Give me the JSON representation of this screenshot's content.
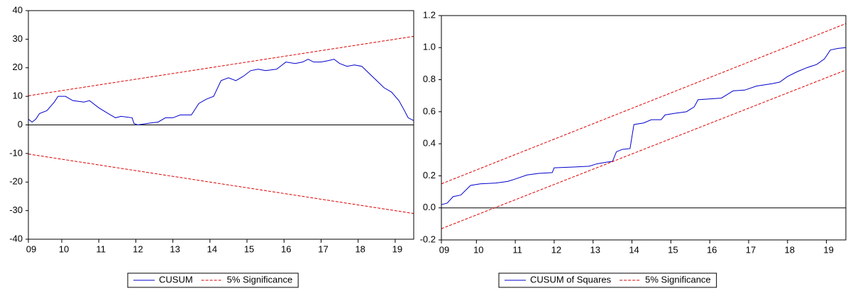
{
  "chart_data": [
    {
      "type": "line",
      "legend": "bottom",
      "xlim": [
        2009.1,
        2019.5
      ],
      "xticks": [
        {
          "value": 2009.1,
          "label": "09"
        },
        {
          "value": 2010,
          "label": "10"
        },
        {
          "value": 2011,
          "label": "11"
        },
        {
          "value": 2012,
          "label": "12"
        },
        {
          "value": 2013,
          "label": "13"
        },
        {
          "value": 2014,
          "label": "14"
        },
        {
          "value": 2015,
          "label": "15"
        },
        {
          "value": 2016,
          "label": "16"
        },
        {
          "value": 2017,
          "label": "17"
        },
        {
          "value": 2018,
          "label": "18"
        },
        {
          "value": 2019,
          "label": "19"
        }
      ],
      "ylim": [
        -40,
        40
      ],
      "yticks": [
        -40,
        -30,
        -20,
        -10,
        0,
        10,
        20,
        30,
        40
      ],
      "series": [
        {
          "name": "CUSUM",
          "color": "#0000cc",
          "style": "solid",
          "x": [
            2009.1,
            2009.2,
            2009.3,
            2009.4,
            2009.6,
            2009.8,
            2009.9,
            2010.1,
            2010.3,
            2010.6,
            2010.75,
            2011.0,
            2011.25,
            2011.45,
            2011.6,
            2011.9,
            2011.95,
            2012.05,
            2012.3,
            2012.6,
            2012.8,
            2013.0,
            2013.2,
            2013.5,
            2013.7,
            2013.9,
            2014.1,
            2014.3,
            2014.5,
            2014.7,
            2014.9,
            2015.1,
            2015.3,
            2015.5,
            2015.8,
            2015.9,
            2016.05,
            2016.3,
            2016.5,
            2016.65,
            2016.8,
            2017.0,
            2017.2,
            2017.35,
            2017.5,
            2017.7,
            2017.9,
            2018.1,
            2018.3,
            2018.5,
            2018.7,
            2018.9,
            2019.1,
            2019.25,
            2019.35,
            2019.5
          ],
          "values": [
            2,
            1,
            2,
            4,
            5,
            8,
            10,
            10,
            8.5,
            8,
            8.5,
            6,
            4,
            2.5,
            3,
            2.5,
            0.5,
            0,
            0.5,
            1,
            2.5,
            2.5,
            3.5,
            3.5,
            7.5,
            9,
            10,
            15.5,
            16.5,
            15.5,
            17,
            19,
            19.5,
            19,
            19.5,
            20.5,
            22,
            21.5,
            22,
            23,
            22,
            22,
            22.5,
            23,
            21.5,
            20.5,
            21,
            20.5,
            18,
            15.5,
            13,
            11.5,
            8.5,
            5,
            2.5,
            1.5
          ]
        },
        {
          "name": "5% Significance",
          "color": "#dd0000",
          "style": "dashed",
          "x": [
            2009.1,
            2019.5
          ],
          "upper": [
            10.2,
            31
          ],
          "lower": [
            -10.2,
            -31
          ]
        }
      ]
    },
    {
      "type": "line",
      "legend": "bottom",
      "xlim": [
        2009.1,
        2019.5
      ],
      "xticks": [
        {
          "value": 2009.1,
          "label": "09"
        },
        {
          "value": 2010,
          "label": "10"
        },
        {
          "value": 2011,
          "label": "11"
        },
        {
          "value": 2012,
          "label": "12"
        },
        {
          "value": 2013,
          "label": "13"
        },
        {
          "value": 2014,
          "label": "14"
        },
        {
          "value": 2015,
          "label": "15"
        },
        {
          "value": 2016,
          "label": "16"
        },
        {
          "value": 2017,
          "label": "17"
        },
        {
          "value": 2018,
          "label": "18"
        },
        {
          "value": 2019,
          "label": "19"
        }
      ],
      "ylim": [
        -0.2,
        1.2
      ],
      "yticks": [
        -0.2,
        {
          "value": 0,
          "label": "0.0"
        },
        0.2,
        0.4,
        0.6,
        0.8,
        {
          "value": 1,
          "label": "1.0"
        },
        1.2
      ],
      "series": [
        {
          "name": "CUSUM of Squares",
          "color": "#0000cc",
          "style": "solid",
          "x": [
            2009.1,
            2009.25,
            2009.4,
            2009.6,
            2009.85,
            2010.1,
            2010.5,
            2010.8,
            2011.0,
            2011.3,
            2011.6,
            2011.95,
            2012.0,
            2012.5,
            2012.9,
            2013.1,
            2013.35,
            2013.5,
            2013.6,
            2013.75,
            2013.95,
            2014.05,
            2014.3,
            2014.5,
            2014.75,
            2014.85,
            2015.1,
            2015.4,
            2015.6,
            2015.7,
            2016.0,
            2016.3,
            2016.5,
            2016.6,
            2016.9,
            2017.2,
            2017.6,
            2017.8,
            2018.0,
            2018.25,
            2018.5,
            2018.75,
            2018.95,
            2019.1,
            2019.3,
            2019.5
          ],
          "values": [
            0.02,
            0.03,
            0.07,
            0.08,
            0.14,
            0.15,
            0.155,
            0.165,
            0.18,
            0.205,
            0.215,
            0.22,
            0.25,
            0.255,
            0.26,
            0.275,
            0.285,
            0.29,
            0.35,
            0.365,
            0.37,
            0.52,
            0.53,
            0.55,
            0.55,
            0.58,
            0.59,
            0.6,
            0.63,
            0.675,
            0.68,
            0.685,
            0.715,
            0.73,
            0.735,
            0.76,
            0.775,
            0.785,
            0.82,
            0.85,
            0.875,
            0.895,
            0.93,
            0.985,
            0.995,
            1.0
          ]
        },
        {
          "name": "5% Significance",
          "color": "#dd0000",
          "style": "dashed",
          "x": [
            2009.1,
            2019.5
          ],
          "upper": [
            0.15,
            1.15
          ],
          "lower": [
            -0.13,
            0.86
          ]
        }
      ]
    }
  ]
}
